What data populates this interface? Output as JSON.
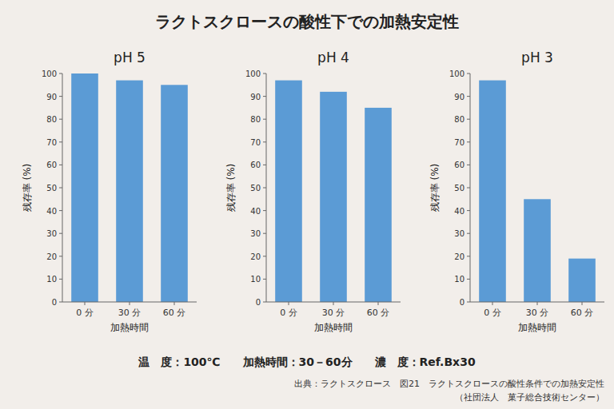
{
  "title": "ラクトスクロースの酸性下での加熱安定性",
  "subtitle": "温　度：100℃　　加熱時間：30－60分　　濃　度：Ref.Bx30",
  "annotations": [
    "出典：ラクトスクロース　図21　ラクトスクロースの酸性条件での加熱安定性",
    "（社団法人　菓子総合技術センター）"
  ],
  "chart_data": [
    {
      "type": "bar",
      "title": "pH 5",
      "categories": [
        "0 分",
        "30 分",
        "60 分"
      ],
      "values": [
        100,
        97,
        95
      ],
      "xlabel": "加熱時間",
      "ylabel": "残存率 (%)",
      "color": "#5b9bd5",
      "ylim": [
        0,
        100
      ],
      "yticks": [
        0,
        10,
        20,
        30,
        40,
        50,
        60,
        70,
        80,
        90,
        100
      ],
      "grid": false
    },
    {
      "type": "bar",
      "title": "pH 4",
      "categories": [
        "0 分",
        "30 分",
        "60 分"
      ],
      "values": [
        97,
        92,
        85
      ],
      "xlabel": "加熱時間",
      "ylabel": "残存率 (%)",
      "color": "#5b9bd5",
      "ylim": [
        0,
        100
      ],
      "yticks": [
        0,
        10,
        20,
        30,
        40,
        50,
        60,
        70,
        80,
        90,
        100
      ],
      "grid": false
    },
    {
      "type": "bar",
      "title": "pH 3",
      "categories": [
        "0 分",
        "30 分",
        "60 分"
      ],
      "values": [
        97,
        45,
        19
      ],
      "xlabel": "加熱時間",
      "ylabel": "残存率 (%)",
      "color": "#5b9bd5",
      "ylim": [
        0,
        100
      ],
      "yticks": [
        0,
        10,
        20,
        30,
        40,
        50,
        60,
        70,
        80,
        90,
        100
      ],
      "grid": false
    }
  ]
}
